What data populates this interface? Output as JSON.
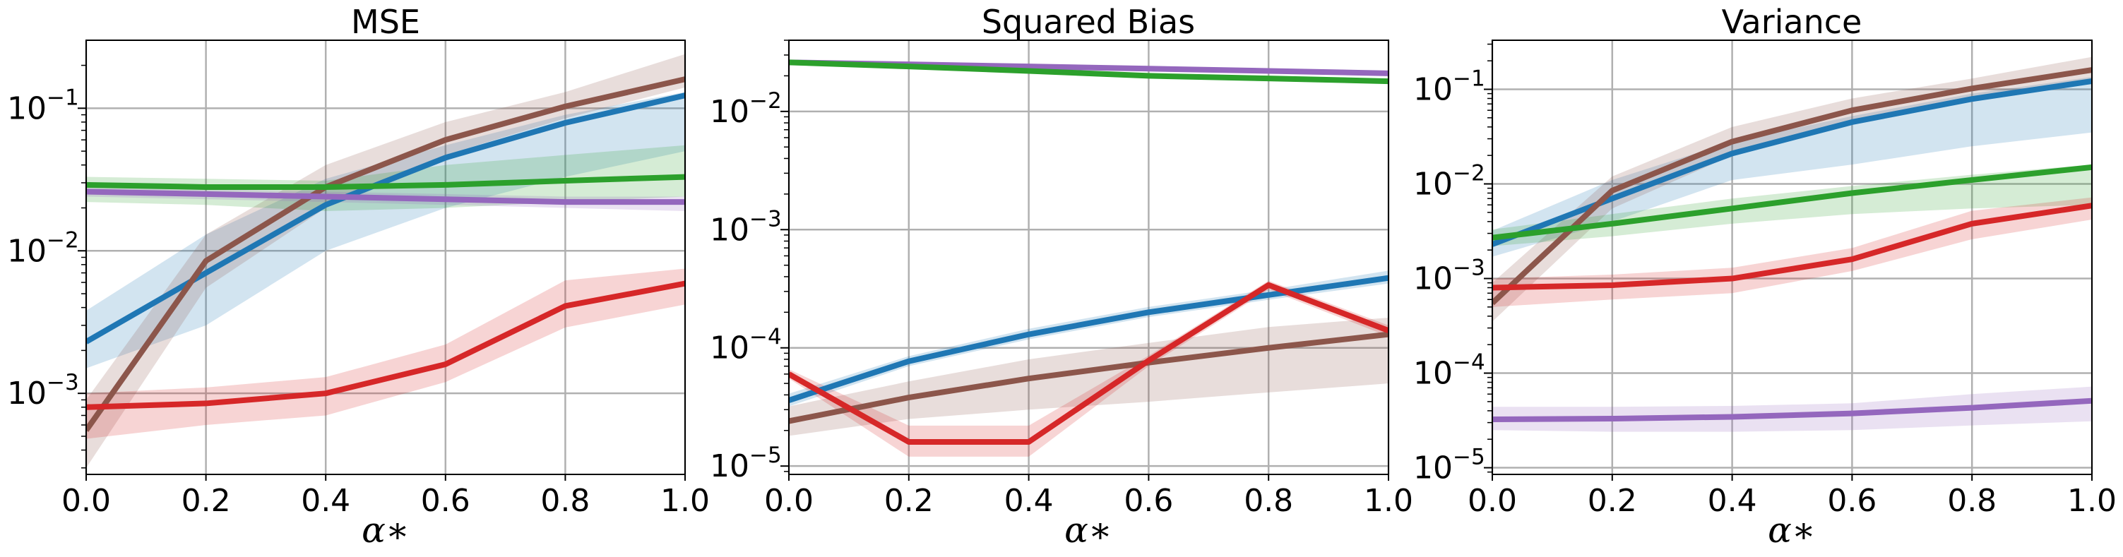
{
  "colors": {
    "blue": "#1f77b4",
    "brown": "#8c564b",
    "green": "#2ca02c",
    "red": "#d62728",
    "purple": "#9467bd"
  },
  "chart_data": [
    {
      "type": "line",
      "title": "MSE",
      "xlabel": "α∗",
      "ylabel": "",
      "yscale": "log",
      "xlim": [
        0,
        1
      ],
      "ylim": [
        0.00027,
        0.3
      ],
      "grid": true,
      "xticks": [
        "0.0",
        "0.2",
        "0.4",
        "0.6",
        "0.8",
        "1.0"
      ],
      "yticks": [
        {
          "base": "10",
          "exp": "−3",
          "value": 0.001
        },
        {
          "base": "10",
          "exp": "−2",
          "value": 0.01
        },
        {
          "base": "10",
          "exp": "−1",
          "value": 0.1
        }
      ],
      "x": [
        0,
        0.2,
        0.4,
        0.6,
        0.8,
        1.0
      ],
      "series": [
        {
          "color": "blue",
          "values": [
            0.0023,
            0.007,
            0.021,
            0.045,
            0.079,
            0.123
          ],
          "band": [
            [
              0.0015,
              0.0038
            ],
            [
              0.003,
              0.013
            ],
            [
              0.01,
              0.032
            ],
            [
              0.02,
              0.055
            ],
            [
              0.033,
              0.09
            ],
            [
              0.05,
              0.13
            ]
          ]
        },
        {
          "color": "brown",
          "values": [
            0.00055,
            0.0085,
            0.028,
            0.06,
            0.103,
            0.16
          ],
          "band": [
            [
              0.0003,
              0.0009
            ],
            [
              0.0055,
              0.013
            ],
            [
              0.02,
              0.04
            ],
            [
              0.047,
              0.08
            ],
            [
              0.085,
              0.13
            ],
            [
              0.14,
              0.24
            ]
          ]
        },
        {
          "color": "green",
          "values": [
            0.029,
            0.028,
            0.028,
            0.029,
            0.031,
            0.033
          ],
          "band": [
            [
              0.022,
              0.033
            ],
            [
              0.021,
              0.032
            ],
            [
              0.019,
              0.031
            ],
            [
              0.02,
              0.04
            ],
            [
              0.022,
              0.047
            ],
            [
              0.024,
              0.055
            ]
          ]
        },
        {
          "color": "purple",
          "values": [
            0.026,
            0.025,
            0.024,
            0.023,
            0.022,
            0.022
          ],
          "band": [
            [
              0.024,
              0.028
            ],
            [
              0.023,
              0.027
            ],
            [
              0.022,
              0.026
            ],
            [
              0.021,
              0.025
            ],
            [
              0.02,
              0.024
            ],
            [
              0.019,
              0.024
            ]
          ]
        },
        {
          "color": "red",
          "values": [
            0.0008,
            0.00085,
            0.001,
            0.0016,
            0.0041,
            0.0059
          ],
          "band": [
            [
              0.00048,
              0.001
            ],
            [
              0.0006,
              0.0011
            ],
            [
              0.0007,
              0.0013
            ],
            [
              0.0012,
              0.0022
            ],
            [
              0.0029,
              0.0062
            ],
            [
              0.0042,
              0.0075
            ]
          ]
        }
      ]
    },
    {
      "type": "line",
      "title": "Squared Bias",
      "xlabel": "α∗",
      "ylabel": "",
      "yscale": "log",
      "xlim": [
        0,
        1
      ],
      "ylim": [
        8.5e-06,
        0.04
      ],
      "grid": true,
      "xticks": [
        "0.0",
        "0.2",
        "0.4",
        "0.6",
        "0.8",
        "1.0"
      ],
      "yticks": [
        {
          "base": "10",
          "exp": "−5",
          "value": 1e-05
        },
        {
          "base": "10",
          "exp": "−4",
          "value": 0.0001
        },
        {
          "base": "10",
          "exp": "−3",
          "value": 0.001
        },
        {
          "base": "10",
          "exp": "−2",
          "value": 0.01
        }
      ],
      "x": [
        0,
        0.2,
        0.4,
        0.6,
        0.8,
        1.0
      ],
      "series": [
        {
          "color": "purple",
          "values": [
            0.026,
            0.025,
            0.024,
            0.023,
            0.022,
            0.021
          ]
        },
        {
          "color": "green",
          "values": [
            0.026,
            0.024,
            0.022,
            0.02,
            0.019,
            0.018
          ]
        },
        {
          "color": "blue",
          "values": [
            3.6e-05,
            7.7e-05,
            0.00013,
            0.0002,
            0.00028,
            0.00039
          ],
          "band": [
            [
              3.2e-05,
              4.1e-05
            ],
            [
              7e-05,
              8.5e-05
            ],
            [
              0.000118,
              0.000145
            ],
            [
              0.000182,
              0.000222
            ],
            [
              0.000255,
              0.00031
            ],
            [
              0.00035,
              0.00045
            ]
          ]
        },
        {
          "color": "brown",
          "values": [
            2.4e-05,
            3.8e-05,
            5.5e-05,
            7.5e-05,
            0.0001,
            0.00013
          ],
          "band": [
            [
              1.8e-05,
              3.2e-05
            ],
            [
              2.5e-05,
              5.2e-05
            ],
            [
              3e-05,
              8e-05
            ],
            [
              3.5e-05,
              0.00011
            ],
            [
              4.2e-05,
              0.00015
            ],
            [
              5e-05,
              0.00018
            ]
          ]
        },
        {
          "color": "red",
          "values": [
            6e-05,
            1.6e-05,
            1.6e-05,
            7.8e-05,
            0.00034,
            0.00014
          ],
          "band": [
            [
              5.5e-05,
              6.6e-05
            ],
            [
              1.2e-05,
              2.2e-05
            ],
            [
              1.2e-05,
              2.2e-05
            ],
            [
              7e-05,
              8.6e-05
            ],
            [
              0.00031,
              0.00037
            ],
            [
              0.000125,
              0.000155
            ]
          ]
        }
      ]
    },
    {
      "type": "line",
      "title": "Variance",
      "xlabel": "α∗",
      "ylabel": "",
      "yscale": "log",
      "xlim": [
        0,
        1
      ],
      "ylim": [
        8.5e-06,
        0.33
      ],
      "grid": true,
      "xticks": [
        "0.0",
        "0.2",
        "0.4",
        "0.6",
        "0.8",
        "1.0"
      ],
      "yticks": [
        {
          "base": "10",
          "exp": "−5",
          "value": 1e-05
        },
        {
          "base": "10",
          "exp": "−4",
          "value": 0.0001
        },
        {
          "base": "10",
          "exp": "−3",
          "value": 0.001
        },
        {
          "base": "10",
          "exp": "−2",
          "value": 0.01
        },
        {
          "base": "10",
          "exp": "−1",
          "value": 0.1
        }
      ],
      "x": [
        0,
        0.2,
        0.4,
        0.6,
        0.8,
        1.0
      ],
      "series": [
        {
          "color": "blue",
          "values": [
            0.0023,
            0.007,
            0.021,
            0.045,
            0.079,
            0.122
          ],
          "band": [
            [
              0.0017,
              0.0032
            ],
            [
              0.004,
              0.011
            ],
            [
              0.011,
              0.028
            ],
            [
              0.016,
              0.052
            ],
            [
              0.025,
              0.09
            ],
            [
              0.035,
              0.135
            ]
          ]
        },
        {
          "color": "brown",
          "values": [
            0.00055,
            0.0085,
            0.028,
            0.06,
            0.102,
            0.16
          ],
          "band": [
            [
              0.00035,
              0.0009
            ],
            [
              0.0055,
              0.012
            ],
            [
              0.02,
              0.04
            ],
            [
              0.045,
              0.08
            ],
            [
              0.08,
              0.13
            ],
            [
              0.13,
              0.22
            ]
          ]
        },
        {
          "color": "green",
          "values": [
            0.0027,
            0.0038,
            0.0055,
            0.008,
            0.011,
            0.015
          ],
          "band": [
            [
              0.0022,
              0.0033
            ],
            [
              0.0028,
              0.0048
            ],
            [
              0.0038,
              0.007
            ],
            [
              0.0048,
              0.0095
            ],
            [
              0.0055,
              0.0125
            ],
            [
              0.006,
              0.016
            ]
          ]
        },
        {
          "color": "red",
          "values": [
            0.0008,
            0.00085,
            0.001,
            0.0016,
            0.0038,
            0.0059
          ],
          "band": [
            [
              0.0005,
              0.001
            ],
            [
              0.0006,
              0.0011
            ],
            [
              0.0007,
              0.0013
            ],
            [
              0.0012,
              0.0021
            ],
            [
              0.0026,
              0.0052
            ],
            [
              0.0042,
              0.0072
            ]
          ]
        },
        {
          "color": "purple",
          "values": [
            3.25e-05,
            3.3e-05,
            3.45e-05,
            3.75e-05,
            4.3e-05,
            5.1e-05
          ],
          "band": [
            [
              2.5e-05,
              4.4e-05
            ],
            [
              2.4e-05,
              4.4e-05
            ],
            [
              2.4e-05,
              4.5e-05
            ],
            [
              2.5e-05,
              4.8e-05
            ],
            [
              2.8e-05,
              6e-05
            ],
            [
              3.1e-05,
              7.2e-05
            ]
          ]
        }
      ]
    }
  ]
}
